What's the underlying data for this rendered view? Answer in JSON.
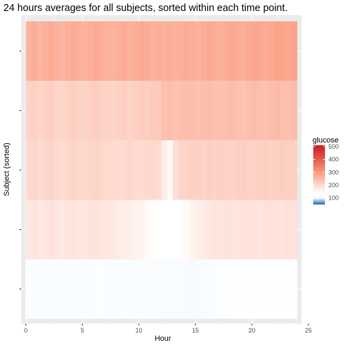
{
  "chart_data": {
    "type": "heatmap",
    "title": "24 hours averages for all subjects, sorted within each time point.",
    "xlabel": "Hour",
    "ylabel": "Subject (sorted)",
    "xlim": [
      -0.4,
      24.4
    ],
    "x_ticks": [
      0,
      5,
      10,
      15,
      20,
      25
    ],
    "x_tick_labels": [
      "0",
      "5",
      "10",
      "15",
      "20",
      "25"
    ],
    "y_rows": 5,
    "x_start": 0,
    "x_end": 24,
    "bins_per_row": 48,
    "value_scale": "glucose",
    "legend": {
      "title": "glucose",
      "ticks": [
        100,
        200,
        300,
        400,
        500
      ],
      "tick_labels": [
        "100",
        "200",
        "300",
        "400",
        "500"
      ],
      "range": [
        50,
        510
      ],
      "position": "right",
      "gradient": [
        {
          "value": 50,
          "color": "#2166ac"
        },
        {
          "value": 100,
          "color": "#f7fbff"
        },
        {
          "value": 140,
          "color": "#ffffff"
        },
        {
          "value": 300,
          "color": "#fb9a7e"
        },
        {
          "value": 510,
          "color": "#cb181d"
        }
      ]
    },
    "rows": [
      {
        "row": 1,
        "values": [
          118,
          116,
          117,
          115,
          119,
          118,
          116,
          117,
          118,
          116,
          115,
          117,
          119,
          118,
          116,
          117,
          118,
          120,
          117,
          116,
          118,
          119,
          117,
          116,
          112,
          110,
          108,
          112,
          105,
          100,
          104,
          110,
          114,
          118,
          122,
          125,
          128,
          130,
          128,
          126,
          130,
          128,
          132,
          130,
          128,
          130,
          132,
          134
        ]
      },
      {
        "row": 2,
        "values": [
          178,
          182,
          175,
          180,
          184,
          179,
          176,
          181,
          183,
          178,
          177,
          182,
          185,
          180,
          178,
          176,
          170,
          168,
          165,
          160,
          158,
          150,
          142,
          140,
          138,
          135,
          140,
          145,
          150,
          160,
          168,
          172,
          178,
          182,
          180,
          185,
          183,
          180,
          186,
          184,
          182,
          180,
          186,
          188,
          184,
          182,
          186,
          188
        ]
      },
      {
        "row": 3,
        "values": [
          200,
          205,
          198,
          202,
          206,
          200,
          196,
          204,
          208,
          202,
          200,
          205,
          210,
          204,
          200,
          198,
          195,
          200,
          204,
          198,
          196,
          200,
          202,
          198,
          170,
          150,
          190,
          205,
          210,
          215,
          212,
          208,
          214,
          210,
          215,
          212,
          210,
          214,
          216,
          212,
          210,
          214,
          216,
          212,
          214,
          218,
          215,
          212
        ]
      },
      {
        "row": 4,
        "values": [
          210,
          214,
          208,
          212,
          216,
          206,
          204,
          212,
          218,
          210,
          208,
          214,
          218,
          212,
          210,
          208,
          212,
          216,
          210,
          214,
          218,
          216,
          222,
          226,
          240,
          244,
          236,
          240,
          245,
          242,
          238,
          244,
          246,
          240,
          238,
          242,
          246,
          240,
          236,
          242,
          246,
          240,
          238,
          244,
          248,
          242,
          240,
          246
        ]
      },
      {
        "row": 5,
        "values": [
          262,
          270,
          258,
          266,
          272,
          264,
          258,
          268,
          274,
          266,
          262,
          270,
          276,
          268,
          264,
          260,
          266,
          272,
          264,
          270,
          274,
          270,
          262,
          268,
          264,
          270,
          260,
          266,
          272,
          268,
          262,
          270,
          276,
          268,
          264,
          272,
          278,
          274,
          268,
          276,
          282,
          276,
          272,
          280,
          286,
          282,
          278,
          284
        ]
      }
    ]
  }
}
